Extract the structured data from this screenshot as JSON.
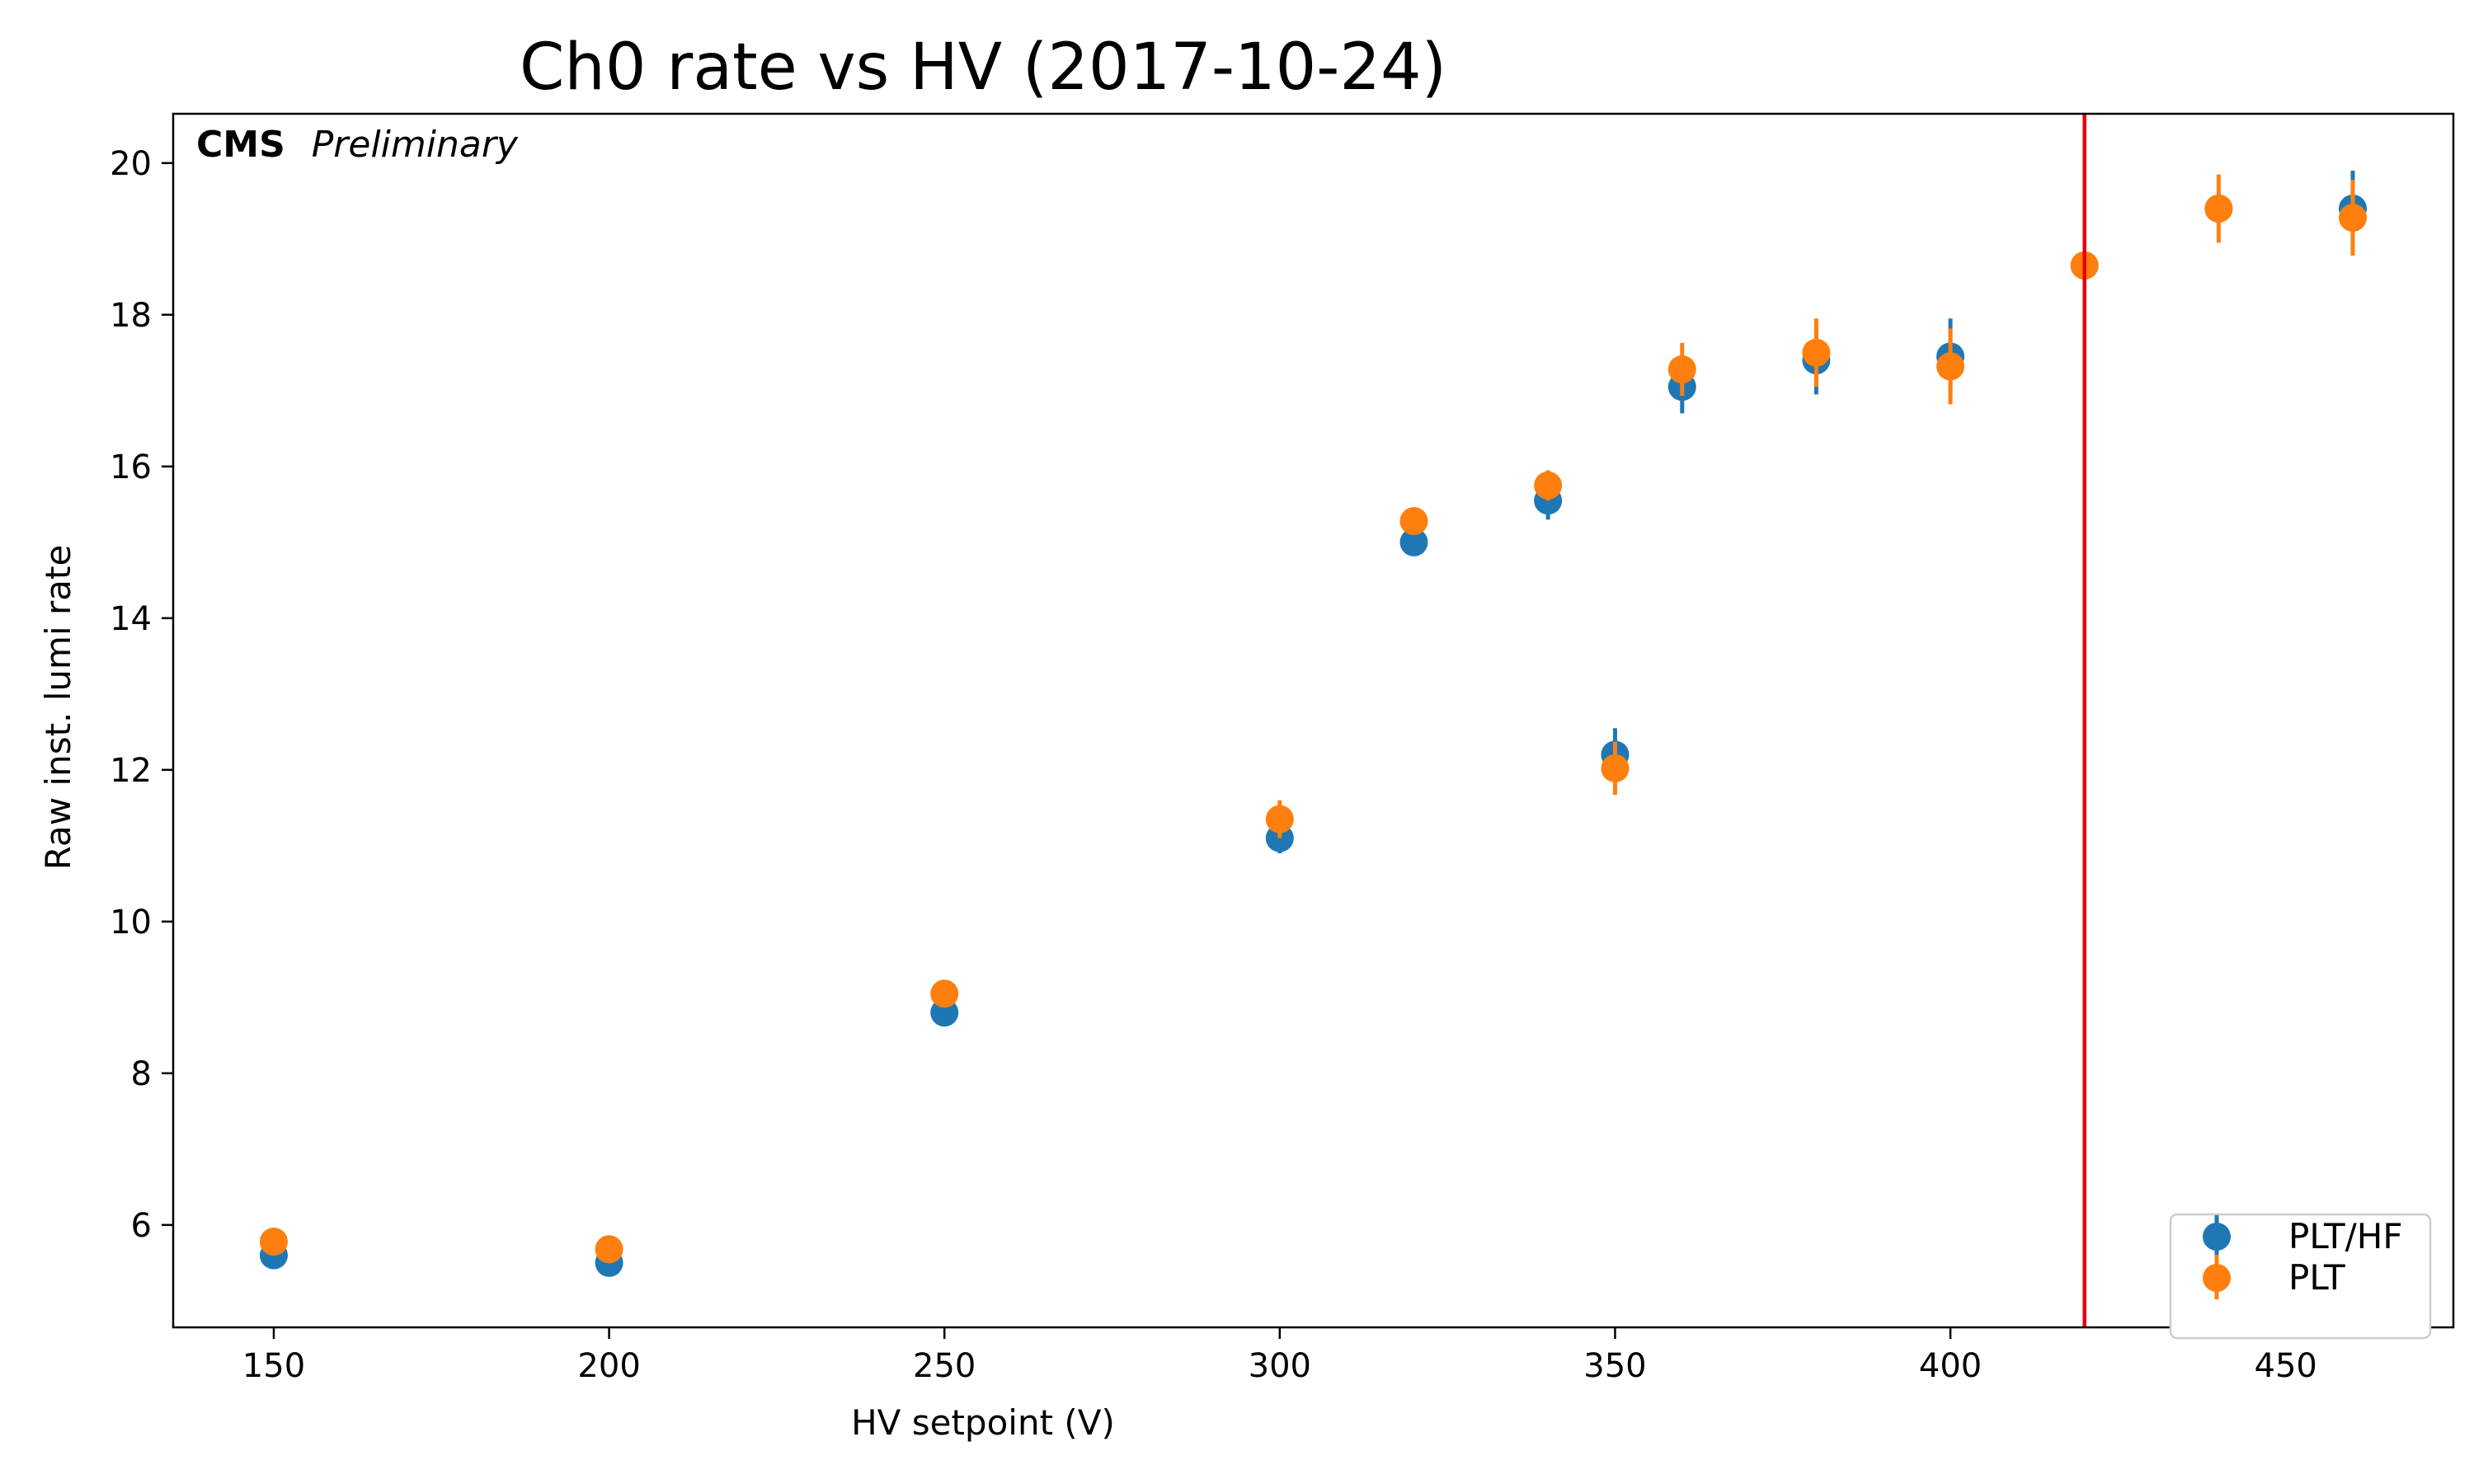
{
  "chart_data": {
    "type": "scatter",
    "title": "Ch0 rate vs HV (2017-10-24)",
    "xlabel": "HV setpoint (V)",
    "ylabel": "Raw inst. lumi rate",
    "xlim": [
      135,
      475
    ],
    "ylim": [
      4.65,
      20.65
    ],
    "xticks": [
      150,
      200,
      250,
      300,
      350,
      400,
      450
    ],
    "yticks": [
      6,
      8,
      10,
      12,
      14,
      16,
      18,
      20
    ],
    "annotation": {
      "bold": "CMS",
      "italic": "Preliminary"
    },
    "vline": {
      "x": 420,
      "color": "#e8000b"
    },
    "legend_position": "lower-right",
    "series": [
      {
        "name": "PLT/HF",
        "color": "#1f77b4",
        "points": [
          {
            "x": 150,
            "y": 5.6,
            "err": 0.08
          },
          {
            "x": 200,
            "y": 5.5,
            "err": 0.08
          },
          {
            "x": 250,
            "y": 8.8,
            "err": 0.08
          },
          {
            "x": 300,
            "y": 11.1,
            "err": 0.2
          },
          {
            "x": 320,
            "y": 15.0,
            "err": 0.1
          },
          {
            "x": 340,
            "y": 15.55,
            "err": 0.25
          },
          {
            "x": 350,
            "y": 12.2,
            "err": 0.35
          },
          {
            "x": 360,
            "y": 17.05,
            "err": 0.35
          },
          {
            "x": 380,
            "y": 17.4,
            "err": 0.45
          },
          {
            "x": 400,
            "y": 17.45,
            "err": 0.5
          },
          {
            "x": 420,
            "y": 18.65,
            "err": 0.1
          },
          {
            "x": 440,
            "y": 19.4,
            "err": 0.1
          },
          {
            "x": 460,
            "y": 19.4,
            "err": 0.5
          }
        ]
      },
      {
        "name": "PLT",
        "color": "#ff7f0e",
        "points": [
          {
            "x": 150,
            "y": 5.78,
            "err": 0.1
          },
          {
            "x": 200,
            "y": 5.68,
            "err": 0.1
          },
          {
            "x": 250,
            "y": 9.05,
            "err": 0.1
          },
          {
            "x": 300,
            "y": 11.35,
            "err": 0.25
          },
          {
            "x": 320,
            "y": 15.28,
            "err": 0.1
          },
          {
            "x": 340,
            "y": 15.75,
            "err": 0.2
          },
          {
            "x": 350,
            "y": 12.02,
            "err": 0.35
          },
          {
            "x": 360,
            "y": 17.28,
            "err": 0.35
          },
          {
            "x": 380,
            "y": 17.5,
            "err": 0.45
          },
          {
            "x": 400,
            "y": 17.32,
            "err": 0.5
          },
          {
            "x": 420,
            "y": 18.65,
            "err": 0.1
          },
          {
            "x": 440,
            "y": 19.4,
            "err": 0.45
          },
          {
            "x": 460,
            "y": 19.28,
            "err": 0.5
          }
        ]
      }
    ]
  }
}
